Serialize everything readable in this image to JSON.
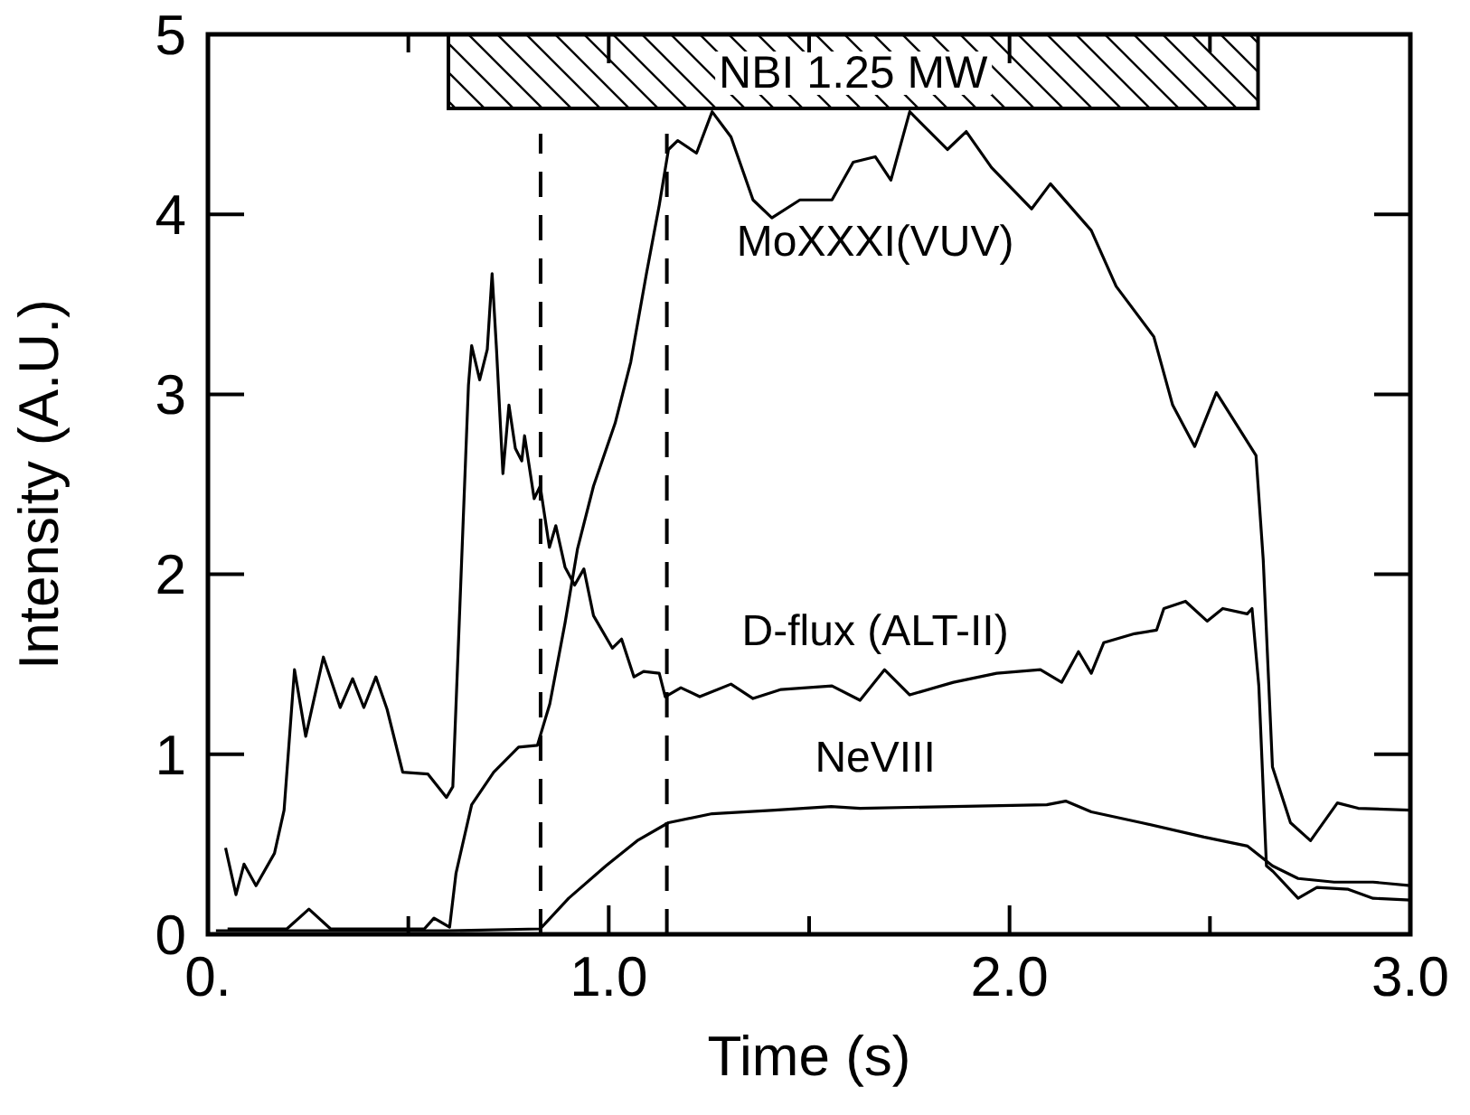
{
  "chart_data": {
    "type": "line",
    "xlabel": "Time (s)",
    "ylabel": "Intensity (A.U.)",
    "xlim": [
      0,
      3
    ],
    "ylim": [
      0,
      5
    ],
    "xticks": [
      {
        "value": 0,
        "label": "0."
      },
      {
        "value": 0.5,
        "label": null
      },
      {
        "value": 1,
        "label": "1.0"
      },
      {
        "value": 1.5,
        "label": null
      },
      {
        "value": 2,
        "label": "2.0"
      },
      {
        "value": 2.5,
        "label": null
      },
      {
        "value": 3,
        "label": "3.0"
      }
    ],
    "yticks": [
      0,
      1,
      2,
      3,
      4,
      5
    ],
    "grid": false,
    "marker": "none",
    "line_style": "solid",
    "series": [
      {
        "name": "D-flux (ALT-II)",
        "color": "#000000",
        "x": [
          0.044,
          0.07,
          0.09,
          0.12,
          0.166,
          0.19,
          0.216,
          0.244,
          0.288,
          0.33,
          0.361,
          0.389,
          0.419,
          0.447,
          0.486,
          0.549,
          0.595,
          0.611,
          0.627,
          0.65,
          0.658,
          0.678,
          0.697,
          0.709,
          0.72,
          0.736,
          0.751,
          0.767,
          0.783,
          0.79,
          0.814,
          0.829,
          0.852,
          0.868,
          0.891,
          0.915,
          0.938,
          0.962,
          1.009,
          1.032,
          1.063,
          1.087,
          1.126,
          1.141,
          1.18,
          1.227,
          1.305,
          1.36,
          1.43,
          1.557,
          1.627,
          1.688,
          1.751,
          1.86,
          1.968,
          2.077,
          2.13,
          2.172,
          2.204,
          2.235,
          2.312,
          2.367,
          2.385,
          2.439,
          2.493,
          2.532,
          2.593,
          2.605,
          2.622,
          2.641,
          2.657,
          2.72,
          2.767,
          2.845,
          2.907,
          3.0
        ],
        "values": [
          0.48,
          0.22,
          0.39,
          0.27,
          0.45,
          0.69,
          1.47,
          1.1,
          1.54,
          1.26,
          1.42,
          1.26,
          1.43,
          1.25,
          0.9,
          0.89,
          0.76,
          0.82,
          1.73,
          3.05,
          3.27,
          3.08,
          3.25,
          3.67,
          3.25,
          2.56,
          2.94,
          2.7,
          2.63,
          2.77,
          2.42,
          2.49,
          2.15,
          2.27,
          2.04,
          1.94,
          2.03,
          1.77,
          1.59,
          1.64,
          1.43,
          1.46,
          1.45,
          1.32,
          1.37,
          1.32,
          1.39,
          1.31,
          1.36,
          1.38,
          1.3,
          1.47,
          1.33,
          1.4,
          1.45,
          1.47,
          1.4,
          1.57,
          1.45,
          1.62,
          1.67,
          1.69,
          1.81,
          1.85,
          1.74,
          1.81,
          1.78,
          1.81,
          1.38,
          0.38,
          0.35,
          0.2,
          0.26,
          0.25,
          0.2,
          0.19
        ]
      },
      {
        "name": "MoXXXI(VUV)",
        "color": "#000000",
        "x": [
          0.049,
          0.197,
          0.252,
          0.306,
          0.54,
          0.564,
          0.603,
          0.619,
          0.658,
          0.713,
          0.775,
          0.822,
          0.853,
          0.891,
          0.922,
          0.962,
          1.016,
          1.055,
          1.094,
          1.126,
          1.149,
          1.172,
          1.219,
          1.258,
          1.305,
          1.36,
          1.407,
          1.477,
          1.557,
          1.61,
          1.665,
          1.704,
          1.751,
          1.845,
          1.892,
          1.955,
          2.055,
          2.102,
          2.204,
          2.266,
          2.36,
          2.407,
          2.462,
          2.516,
          2.615,
          2.633,
          2.656,
          2.701,
          2.751,
          2.818,
          2.87,
          3.0
        ],
        "values": [
          0.03,
          0.03,
          0.14,
          0.03,
          0.03,
          0.09,
          0.04,
          0.34,
          0.72,
          0.9,
          1.04,
          1.05,
          1.28,
          1.73,
          2.14,
          2.49,
          2.84,
          3.18,
          3.67,
          4.05,
          4.36,
          4.41,
          4.34,
          4.57,
          4.43,
          4.08,
          3.98,
          4.08,
          4.08,
          4.29,
          4.32,
          4.19,
          4.57,
          4.36,
          4.46,
          4.26,
          4.03,
          4.17,
          3.91,
          3.6,
          3.32,
          2.94,
          2.71,
          3.01,
          2.66,
          2.08,
          0.93,
          0.62,
          0.52,
          0.73,
          0.7,
          0.69
        ]
      },
      {
        "name": "NeVIII",
        "color": "#000000",
        "x": [
          0.02,
          0.3,
          0.6,
          0.829,
          0.9,
          0.993,
          1.071,
          1.149,
          1.258,
          1.414,
          1.555,
          1.627,
          1.86,
          2.093,
          2.14,
          2.204,
          2.329,
          2.485,
          2.594,
          2.656,
          2.72,
          2.81,
          2.907,
          3.0
        ],
        "values": [
          0.02,
          0.02,
          0.02,
          0.03,
          0.2,
          0.38,
          0.52,
          0.62,
          0.67,
          0.69,
          0.71,
          0.7,
          0.71,
          0.72,
          0.74,
          0.68,
          0.62,
          0.54,
          0.49,
          0.38,
          0.31,
          0.29,
          0.29,
          0.27
        ]
      }
    ],
    "ref_lines": [
      {
        "axis": "x",
        "value": 0.83,
        "line_style": "dashed"
      },
      {
        "axis": "x",
        "value": 1.145,
        "line_style": "dashed"
      }
    ],
    "bands": [
      {
        "axis": "x",
        "from": 0.6,
        "to": 2.62,
        "label": "NBI 1.25 MW"
      }
    ]
  }
}
